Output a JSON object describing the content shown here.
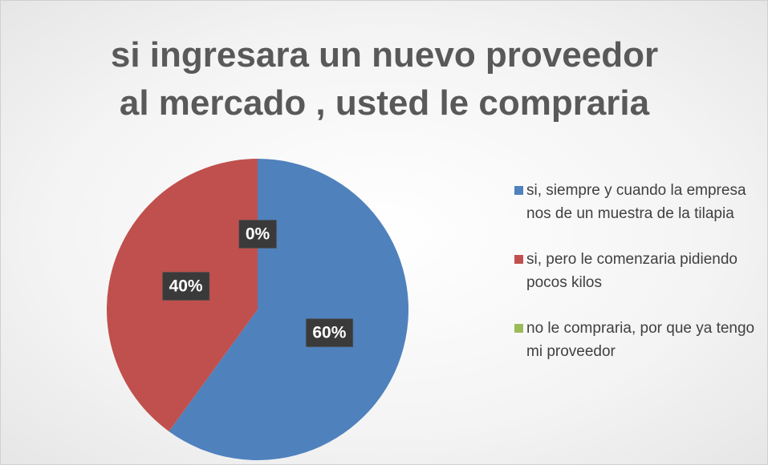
{
  "chart_data": {
    "type": "pie",
    "title": "si ingresara un nuevo proveedor al mercado , usted le compraria",
    "categories": [
      "si, siempre y cuando la empresa nos de un muestra de la tilapia",
      "si, pero le comenzaria pidiendo pocos kilos",
      "no le compraria, por que ya tengo mi proveedor"
    ],
    "values": [
      60,
      40,
      0
    ],
    "value_labels": [
      "60%",
      "40%",
      "0%"
    ],
    "colors": [
      "#4f81bd",
      "#c0504d",
      "#9bbb59"
    ],
    "legend": "right"
  }
}
